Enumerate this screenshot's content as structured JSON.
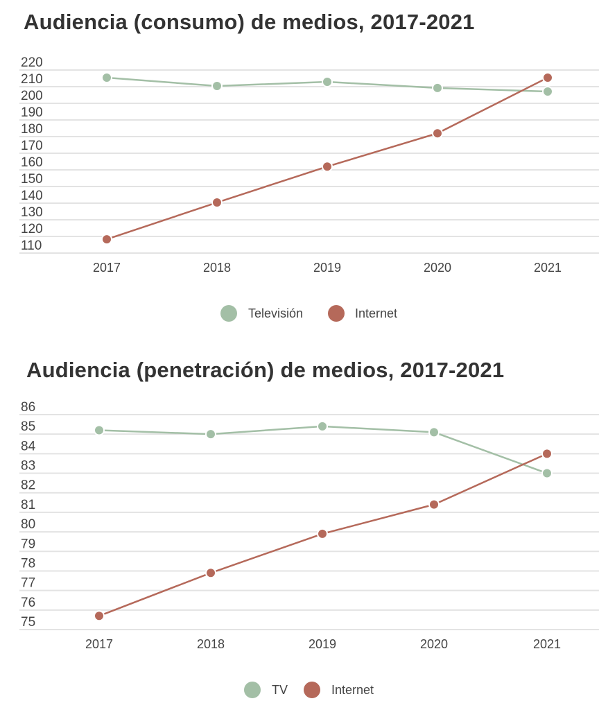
{
  "chart_data": [
    {
      "type": "line",
      "title": "Audiencia (consumo) de medios, 2017-2021",
      "categories": [
        "2017",
        "2018",
        "2019",
        "2020",
        "2021"
      ],
      "yticks": [
        220,
        210,
        200,
        190,
        180,
        170,
        160,
        150,
        140,
        130,
        120,
        110
      ],
      "ylim": [
        110,
        220
      ],
      "grid": true,
      "legend": "bottom",
      "series": [
        {
          "name": "Televisión",
          "color": "#a3bfa6",
          "values": [
            215.4,
            210.4,
            212.9,
            209.2,
            207.1
          ]
        },
        {
          "name": "Internet",
          "color": "#b5695a",
          "values": [
            118.3,
            140.4,
            162,
            182,
            215.4
          ]
        }
      ]
    },
    {
      "type": "line",
      "title": "Audiencia (penetración) de medios, 2017-2021",
      "categories": [
        "2017",
        "2018",
        "2019",
        "2020",
        "2021"
      ],
      "yticks": [
        86,
        85,
        84,
        83,
        82,
        81,
        80,
        79,
        78,
        77,
        76,
        75
      ],
      "ylim": [
        75,
        86
      ],
      "grid": true,
      "legend": "bottom",
      "series": [
        {
          "name": "TV",
          "color": "#a3bfa6",
          "values": [
            85.2,
            85.0,
            85.4,
            85.1,
            83.0
          ]
        },
        {
          "name": "Internet",
          "color": "#b5695a",
          "values": [
            75.7,
            77.9,
            79.9,
            81.4,
            84.0
          ]
        }
      ]
    }
  ]
}
